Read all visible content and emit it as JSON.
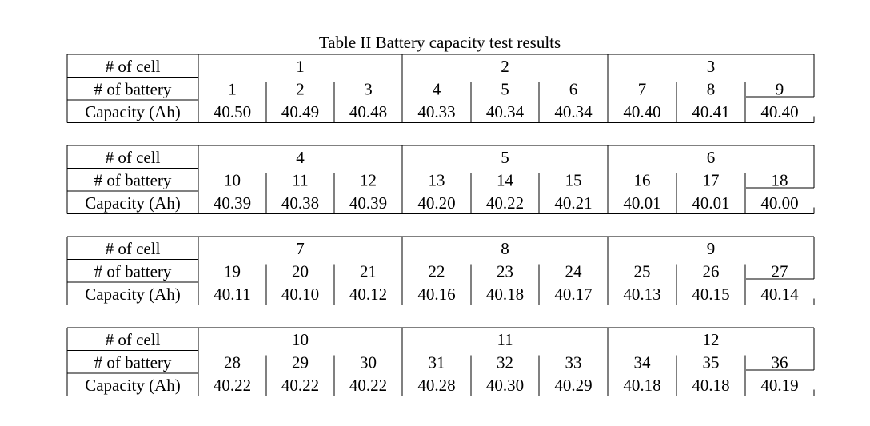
{
  "title": "Table II Battery capacity test results",
  "row_labels": {
    "cell": "# of cell",
    "battery": "# of battery",
    "capacity": "Capacity (Ah)"
  },
  "tables": [
    {
      "cells": [
        "1",
        "2",
        "3"
      ],
      "batteries": [
        "1",
        "2",
        "3",
        "4",
        "5",
        "6",
        "7",
        "8",
        "9"
      ],
      "capacities": [
        "40.50",
        "40.49",
        "40.48",
        "40.33",
        "40.34",
        "40.34",
        "40.40",
        "40.41",
        "40.40"
      ]
    },
    {
      "cells": [
        "4",
        "5",
        "6"
      ],
      "batteries": [
        "10",
        "11",
        "12",
        "13",
        "14",
        "15",
        "16",
        "17",
        "18"
      ],
      "capacities": [
        "40.39",
        "40.38",
        "40.39",
        "40.20",
        "40.22",
        "40.21",
        "40.01",
        "40.01",
        "40.00"
      ]
    },
    {
      "cells": [
        "7",
        "8",
        "9"
      ],
      "batteries": [
        "19",
        "20",
        "21",
        "22",
        "23",
        "24",
        "25",
        "26",
        "27"
      ],
      "capacities": [
        "40.11",
        "40.10",
        "40.12",
        "40.16",
        "40.18",
        "40.17",
        "40.13",
        "40.15",
        "40.14"
      ]
    },
    {
      "cells": [
        "10",
        "11",
        "12"
      ],
      "batteries": [
        "28",
        "29",
        "30",
        "31",
        "32",
        "33",
        "34",
        "35",
        "36"
      ],
      "capacities": [
        "40.22",
        "40.22",
        "40.22",
        "40.28",
        "40.30",
        "40.29",
        "40.18",
        "40.18",
        "40.19"
      ]
    }
  ]
}
